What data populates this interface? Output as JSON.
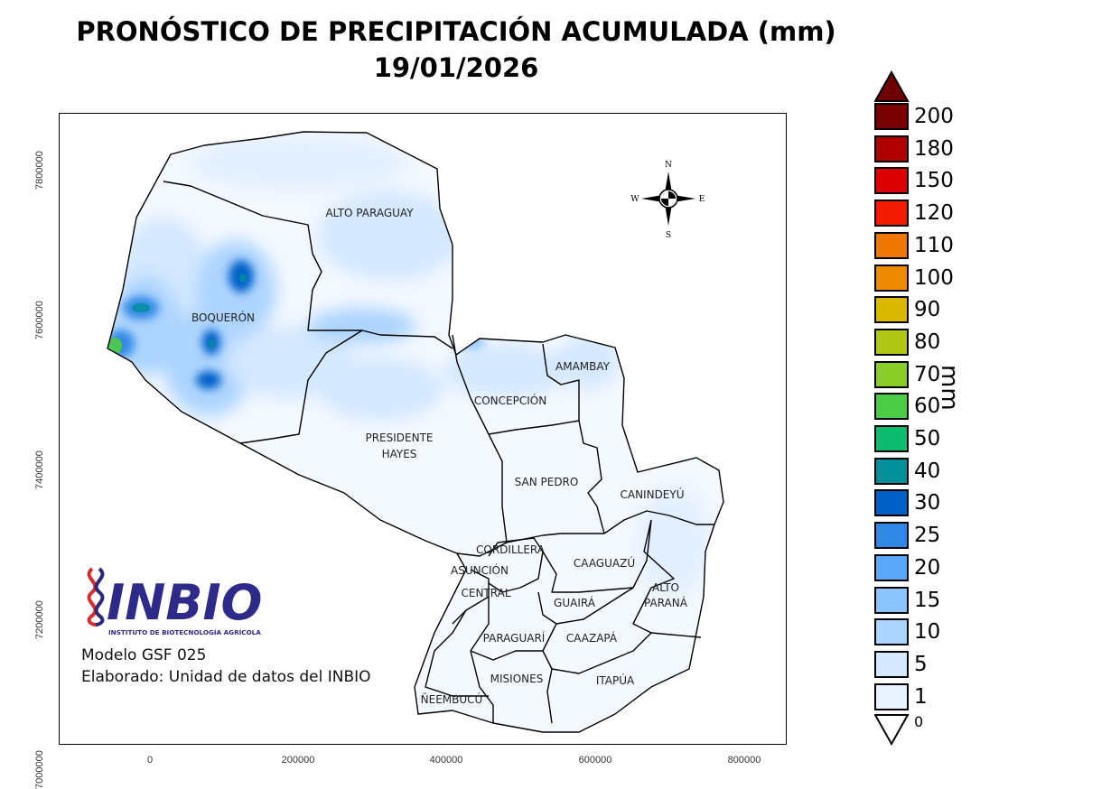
{
  "header": {
    "title": "PRONÓSTICO DE PRECIPITACIÓN ACUMULADA (mm)",
    "date": "19/01/2026"
  },
  "map": {
    "y_ticks": [
      "7800000",
      "7600000",
      "7400000",
      "7200000",
      "7000000"
    ],
    "x_ticks": [
      "0",
      "200000",
      "400000",
      "600000",
      "800000"
    ],
    "compass": {
      "n": "N",
      "s": "S",
      "e": "E",
      "w": "W"
    },
    "departments": [
      {
        "name": "ALTO PARAGUAY"
      },
      {
        "name": "BOQUERÓN"
      },
      {
        "name": "PRESIDENTE"
      },
      {
        "name": "HAYES"
      },
      {
        "name": "CONCEPCIÓN"
      },
      {
        "name": "AMAMBAY"
      },
      {
        "name": "SAN PEDRO"
      },
      {
        "name": "CANINDEYÚ"
      },
      {
        "name": "CORDILLERA"
      },
      {
        "name": "ASUNCIÓN"
      },
      {
        "name": "CENTRAL"
      },
      {
        "name": "CAAGUAZÚ"
      },
      {
        "name": "ALTO"
      },
      {
        "name": "PARANÁ"
      },
      {
        "name": "GUAIRÁ"
      },
      {
        "name": "PARAGUARÍ"
      },
      {
        "name": "CAAZAPÁ"
      },
      {
        "name": "MISIONES"
      },
      {
        "name": "ITAPÚA"
      },
      {
        "name": "ÑEEMBUCÚ"
      }
    ]
  },
  "legend": {
    "unit": "mm",
    "over_color": "#6e0000",
    "under_label": "0",
    "classes": [
      {
        "label": "200",
        "color": "#7a0000"
      },
      {
        "label": "180",
        "color": "#b00000"
      },
      {
        "label": "150",
        "color": "#dc0000"
      },
      {
        "label": "120",
        "color": "#f21d00"
      },
      {
        "label": "110",
        "color": "#f07800"
      },
      {
        "label": "100",
        "color": "#ec8c00"
      },
      {
        "label": "90",
        "color": "#d9b800"
      },
      {
        "label": "80",
        "color": "#b0c814"
      },
      {
        "label": "70",
        "color": "#8ccc28"
      },
      {
        "label": "60",
        "color": "#4ccc46"
      },
      {
        "label": "50",
        "color": "#0cbc70"
      },
      {
        "label": "40",
        "color": "#00909a"
      },
      {
        "label": "30",
        "color": "#0060c8"
      },
      {
        "label": "25",
        "color": "#3088e4"
      },
      {
        "label": "20",
        "color": "#5aa8fa"
      },
      {
        "label": "15",
        "color": "#8cc4ff"
      },
      {
        "label": "10",
        "color": "#acd4ff"
      },
      {
        "label": "5",
        "color": "#d4e8ff"
      },
      {
        "label": "1",
        "color": "#e8f2ff"
      }
    ]
  },
  "credits": {
    "logo_text": "INBIO",
    "logo_subtitle": "INSTITUTO DE BIOTECNOLOGÍA AGRÍCOLA",
    "model": "Modelo GSF 025",
    "made_by": "Elaborado: Unidad de datos del INBIO"
  }
}
